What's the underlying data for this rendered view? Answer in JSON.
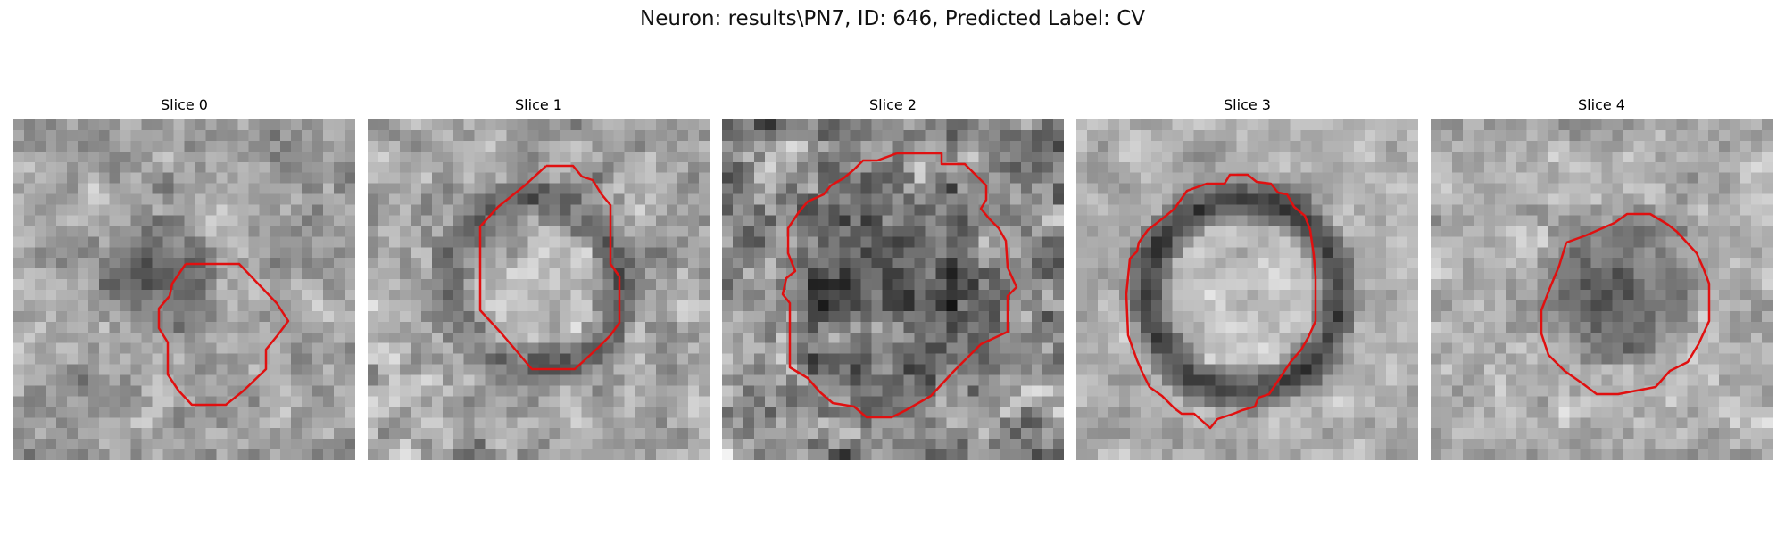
{
  "figure": {
    "title": "Neuron: results\\PN7, ID: 646, Predicted Label: CV",
    "contour_color": "#e01010"
  },
  "slices": [
    {
      "title": "Slice 0"
    },
    {
      "title": "Slice 1"
    },
    {
      "title": "Slice 2"
    },
    {
      "title": "Slice 3"
    },
    {
      "title": "Slice 4"
    }
  ]
}
